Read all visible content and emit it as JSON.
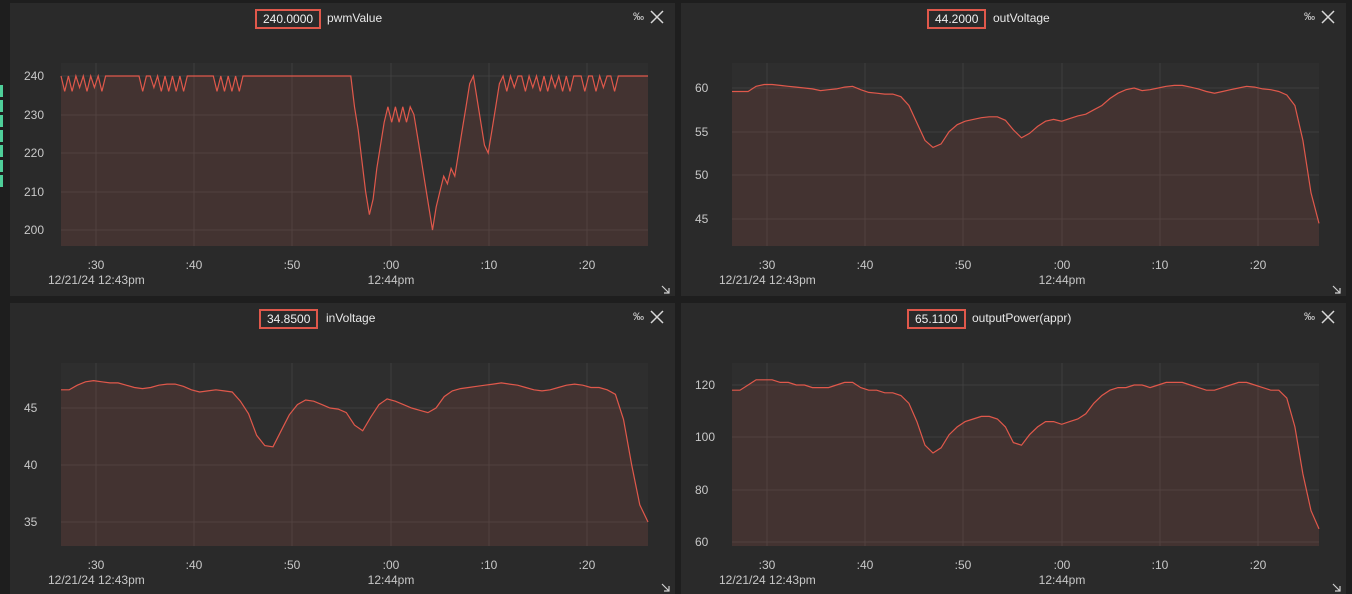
{
  "panels": [
    {
      "value": "240.0000",
      "name": "pwmValue",
      "permille": "‰",
      "time_left": "12/21/24 12:43pm",
      "time_mid": "12:44pm",
      "chart_data": {
        "type": "area",
        "title": "pwmValue",
        "x_ticks": [
          ":30",
          ":40",
          ":50",
          ":00",
          ":10",
          ":20"
        ],
        "y_ticks": [
          "240",
          "230",
          "220",
          "210",
          "200"
        ],
        "ylim": [
          196,
          243
        ],
        "grid": true,
        "series": [
          {
            "name": "pwmValue",
            "values": [
              240,
              236,
              240,
              236,
              240,
              237,
              240,
              236,
              240,
              237,
              240,
              236,
              240,
              240,
              240,
              240,
              240,
              240,
              240,
              240,
              240,
              240,
              236,
              240,
              240,
              237,
              240,
              236,
              240,
              236,
              240,
              236,
              240,
              236,
              240,
              240,
              240,
              240,
              240,
              240,
              240,
              240,
              236,
              240,
              236,
              240,
              236,
              240,
              236,
              240,
              240,
              240,
              240,
              240,
              240,
              240,
              240,
              240,
              240,
              240,
              240,
              240,
              240,
              240,
              240,
              240,
              240,
              240,
              240,
              240,
              240,
              240,
              240,
              240,
              240,
              240,
              240,
              240,
              240,
              232,
              226,
              218,
              210,
              204,
              208,
              216,
              222,
              228,
              232,
              228,
              232,
              228,
              232,
              228,
              232,
              230,
              224,
              218,
              212,
              206,
              200,
              206,
              210,
              214,
              212,
              216,
              214,
              220,
              226,
              232,
              238,
              240,
              234,
              228,
              222,
              220,
              226,
              232,
              238,
              240,
              236,
              240,
              237,
              240,
              240,
              236,
              240,
              237,
              240,
              236,
              240,
              236,
              240,
              237,
              240,
              236,
              240,
              236,
              240,
              240,
              240,
              236,
              240,
              240,
              236,
              240,
              237,
              240,
              240,
              236,
              240,
              240,
              240,
              240,
              240,
              240,
              240,
              240,
              240
            ]
          }
        ],
        "color": "#e0584b"
      }
    },
    {
      "value": "44.2000",
      "name": "outVoltage",
      "permille": "‰",
      "time_left": "12/21/24 12:43pm",
      "time_mid": "12:44pm",
      "chart_data": {
        "type": "area",
        "title": "outVoltage",
        "x_ticks": [
          ":30",
          ":40",
          ":50",
          ":00",
          ":10",
          ":20"
        ],
        "y_ticks": [
          "60",
          "55",
          "50",
          "45"
        ],
        "ylim": [
          42.8,
          63
        ],
        "grid": true,
        "series": [
          {
            "name": "outVoltage",
            "values": [
              59.6,
              59.6,
              59.6,
              60.2,
              60.4,
              60.4,
              60.3,
              60.2,
              60.1,
              60.0,
              59.9,
              59.7,
              59.8,
              59.9,
              60.1,
              60.2,
              59.8,
              59.5,
              59.4,
              59.3,
              59.3,
              59.0,
              58.0,
              56.0,
              54.0,
              53.2,
              53.6,
              55.0,
              55.8,
              56.2,
              56.4,
              56.6,
              56.7,
              56.7,
              56.3,
              55.2,
              54.3,
              54.8,
              55.6,
              56.2,
              56.4,
              56.2,
              56.5,
              56.8,
              57.0,
              57.5,
              58.0,
              58.8,
              59.4,
              59.8,
              60.0,
              59.7,
              59.8,
              60.0,
              60.2,
              60.3,
              60.3,
              60.1,
              59.9,
              59.6,
              59.4,
              59.6,
              59.8,
              60.0,
              60.2,
              60.1,
              59.9,
              59.8,
              59.6,
              59.2,
              58.0,
              54.0,
              48.0,
              44.5
            ]
          }
        ],
        "color": "#e0584b"
      }
    },
    {
      "value": "34.8500",
      "name": "inVoltage",
      "permille": "‰",
      "time_left": "12/21/24 12:43pm",
      "time_mid": "12:44pm",
      "chart_data": {
        "type": "area",
        "title": "inVoltage",
        "x_ticks": [
          ":30",
          ":40",
          ":50",
          ":00",
          ":10",
          ":20"
        ],
        "y_ticks": [
          "45",
          "40",
          "35"
        ],
        "ylim": [
          33.0,
          49.0
        ],
        "grid": true,
        "series": [
          {
            "name": "inVoltage",
            "values": [
              46.6,
              46.6,
              47.0,
              47.3,
              47.4,
              47.3,
              47.2,
              47.2,
              47.0,
              46.8,
              46.7,
              46.8,
              47.0,
              47.1,
              47.1,
              46.9,
              46.6,
              46.4,
              46.5,
              46.6,
              46.5,
              46.4,
              45.6,
              44.5,
              42.6,
              41.7,
              41.6,
              43.0,
              44.4,
              45.3,
              45.7,
              45.6,
              45.3,
              45.0,
              44.9,
              44.6,
              43.5,
              43.0,
              44.2,
              45.3,
              45.8,
              45.6,
              45.3,
              45.0,
              44.8,
              44.6,
              45.0,
              46.0,
              46.5,
              46.7,
              46.8,
              46.9,
              47.0,
              47.1,
              47.2,
              47.1,
              47.0,
              46.8,
              46.6,
              46.5,
              46.6,
              46.8,
              47.0,
              47.1,
              47.0,
              46.8,
              46.8,
              46.6,
              46.2,
              44.0,
              40.0,
              36.5,
              35.0
            ]
          }
        ],
        "color": "#e0584b"
      }
    },
    {
      "value": "65.1100",
      "name": "outputPower(appr)",
      "permille": "‰",
      "time_left": "12/21/24 12:43pm",
      "time_mid": "12:44pm",
      "chart_data": {
        "type": "area",
        "title": "outputPower(appr)",
        "x_ticks": [
          ":30",
          ":40",
          ":50",
          ":00",
          ":10",
          ":20"
        ],
        "y_ticks": [
          "120",
          "100",
          "80",
          "60"
        ],
        "ylim": [
          58,
          128
        ],
        "grid": true,
        "series": [
          {
            "name": "outputPower(appr)",
            "values": [
              118,
              118,
              120,
              122,
              122,
              122,
              121,
              121,
              120,
              120,
              119,
              119,
              119,
              120,
              121,
              121,
              119,
              118,
              118,
              117,
              117,
              116,
              113,
              106,
              97,
              94,
              96,
              101,
              104,
              106,
              107,
              108,
              108,
              107,
              104,
              98,
              97,
              101,
              104,
              106,
              106,
              105,
              106,
              107,
              109,
              113,
              116,
              118,
              119,
              119,
              120,
              120,
              119,
              120,
              121,
              121,
              121,
              120,
              119,
              118,
              118,
              119,
              120,
              121,
              121,
              120,
              119,
              118,
              118,
              115,
              104,
              86,
              72,
              65
            ]
          }
        ],
        "color": "#e0584b"
      }
    }
  ]
}
